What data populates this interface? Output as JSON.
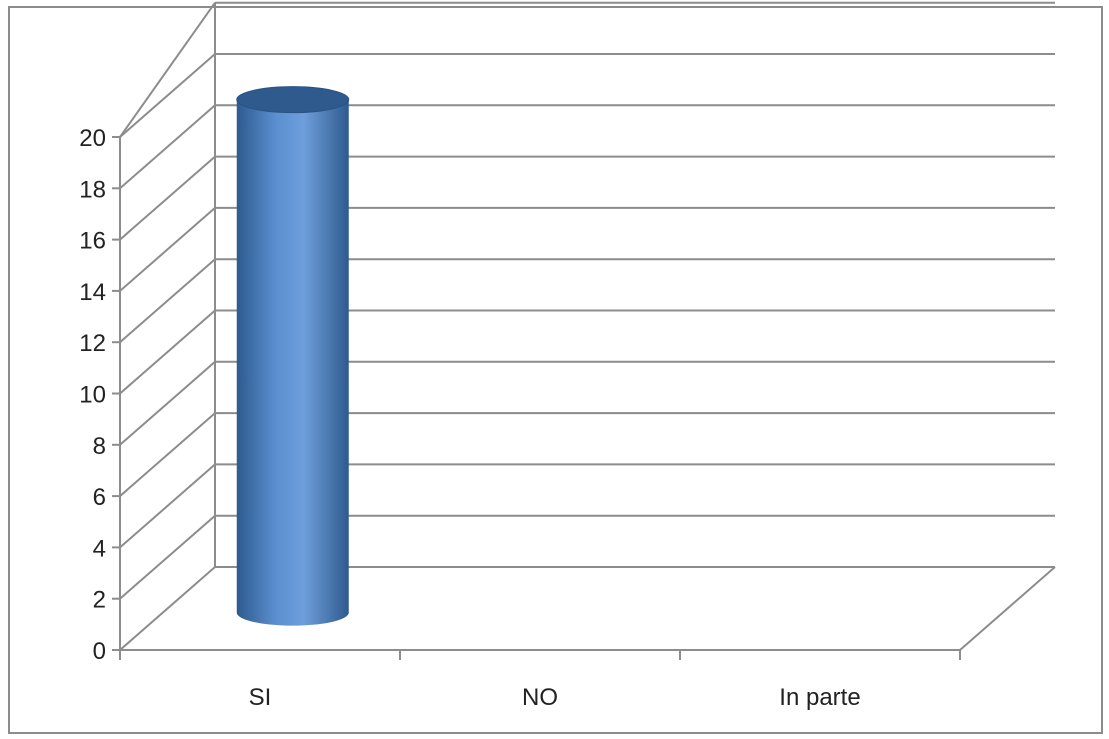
{
  "chart_data": {
    "type": "bar",
    "style": "3d-cylinder",
    "categories": [
      "SI",
      "NO",
      "In parte"
    ],
    "values": [
      20,
      0,
      0
    ],
    "ylim": [
      0,
      20
    ],
    "yticks": [
      0,
      2,
      4,
      6,
      8,
      10,
      12,
      14,
      16,
      18,
      20
    ],
    "grid": true,
    "legend": "none",
    "colors": {
      "bar": "#4f81bd",
      "bar_light": "#7ea6dc",
      "bar_dark": "#2e5a8e",
      "grid": "#8c8c8c",
      "frame": "#8c8c8c"
    }
  }
}
